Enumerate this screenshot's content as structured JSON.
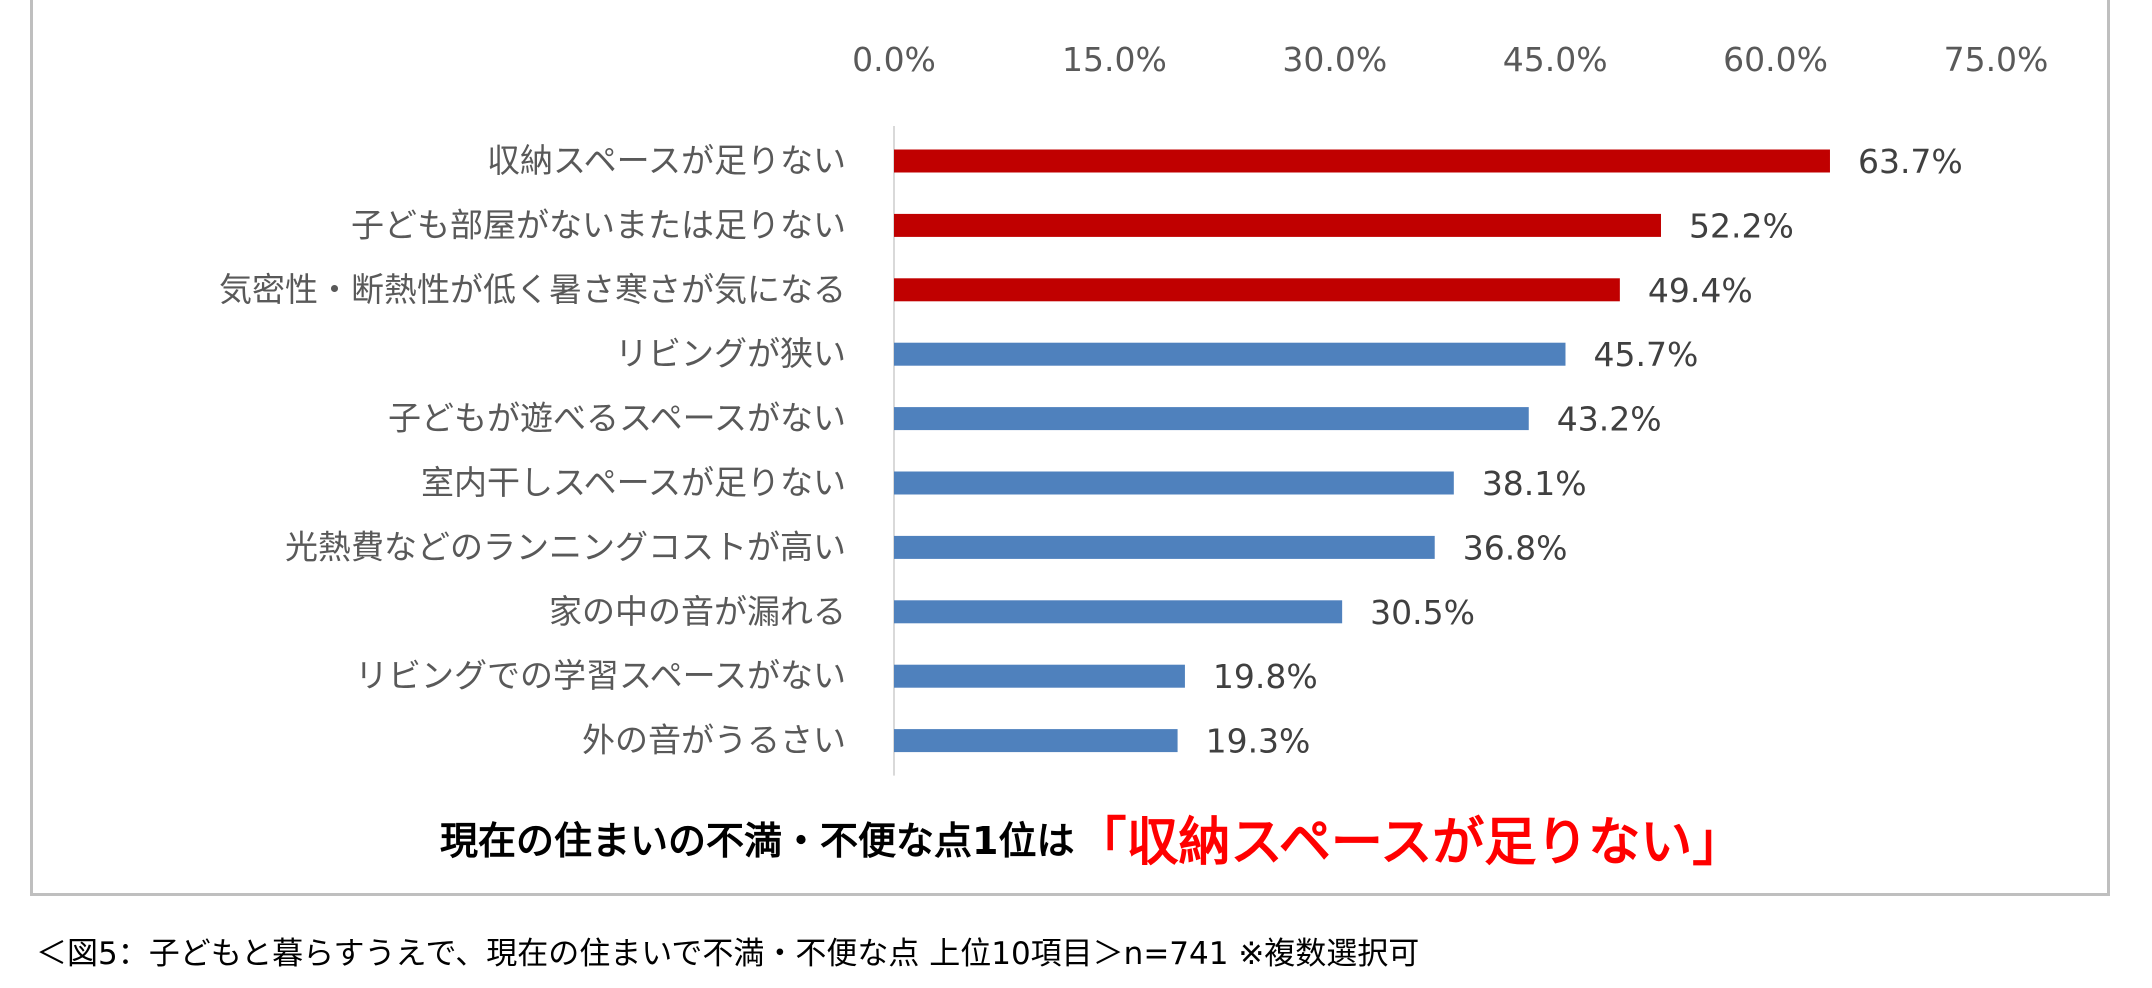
{
  "chart_data": {
    "type": "bar",
    "orientation": "horizontal",
    "categories": [
      "収納スペースが足りない",
      "子ども部屋がないまたは足りない",
      "気密性・断熱性が低く暑さ寒さが気になる",
      "リビングが狭い",
      "子どもが遊べるスペースがない",
      "室内干しスペースが足りない",
      "光熱費などのランニングコストが高い",
      "家の中の音が漏れる",
      "リビングでの学習スペースがない",
      "外の音がうるさい"
    ],
    "values": [
      63.7,
      52.2,
      49.4,
      45.7,
      43.2,
      38.1,
      36.8,
      30.5,
      19.8,
      19.3
    ],
    "value_labels": [
      "63.7%",
      "52.2%",
      "49.4%",
      "45.7%",
      "43.2%",
      "38.1%",
      "36.8%",
      "30.5%",
      "19.8%",
      "19.3%"
    ],
    "highlight_count": 3,
    "colors": {
      "highlight": "#C00000",
      "normal": "#4F81BD"
    },
    "xlim": [
      0,
      75
    ],
    "ticks": [
      0,
      15,
      30,
      45,
      60,
      75
    ],
    "tick_labels": [
      "0.0%",
      "15.0%",
      "30.0%",
      "45.0%",
      "60.0%",
      "75.0%"
    ],
    "xaxis_position": "top",
    "grid": false,
    "title": "",
    "xlabel": "",
    "ylabel": ""
  },
  "headline": {
    "prefix": "現在の住まいの不満・不便な点1位は",
    "highlight": "「収納スペースが足りない」"
  },
  "caption": "＜図5：子どもと暮らすうえで、現在の住まいで不満・不便な点 上位10項目＞n=741 ※複数選択可"
}
